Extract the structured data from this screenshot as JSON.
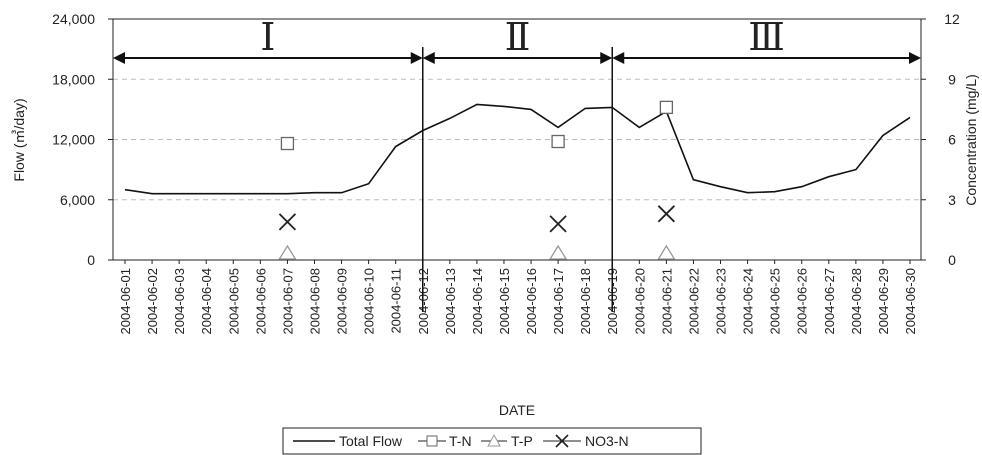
{
  "chart_data": {
    "type": "line",
    "xlabel": "DATE",
    "ylabel_left": "Flow (㎥/day)",
    "ylabel_right": "Concentration (mg/L)",
    "ylim_left": [
      0,
      24000
    ],
    "ylim_right": [
      0,
      12
    ],
    "yticks_left": [
      "0",
      "6,000",
      "12,000",
      "18,000",
      "24,000"
    ],
    "yticks_right": [
      "0",
      "3",
      "6",
      "9",
      "12"
    ],
    "grid": "horizontal-dashed",
    "legend_position": "bottom",
    "x": [
      "2004-06-01",
      "2004-06-02",
      "2004-06-03",
      "2004-06-04",
      "2004-06-05",
      "2004-06-06",
      "2004-06-07",
      "2004-06-08",
      "2004-06-09",
      "2004-06-10",
      "2004-06-11",
      "2004-06-12",
      "2004-06-13",
      "2004-06-14",
      "2004-06-15",
      "2004-06-16",
      "2004-06-17",
      "2004-06-18",
      "2004-06-19",
      "2004-06-20",
      "2004-06-21",
      "2004-06-22",
      "2004-06-23",
      "2004-06-24",
      "2004-06-25",
      "2004-06-26",
      "2004-06-27",
      "2004-06-28",
      "2004-06-29",
      "2004-06-30"
    ],
    "series": [
      {
        "name": "Total Flow",
        "axis": "left",
        "style": "line",
        "color": "#111111",
        "values": [
          7000,
          6600,
          6600,
          6600,
          6600,
          6600,
          6600,
          6700,
          6700,
          7600,
          11300,
          12900,
          14100,
          15500,
          15300,
          15000,
          13200,
          15100,
          15200,
          13200,
          14800,
          8000,
          7300,
          6700,
          6800,
          7300,
          8300,
          9000,
          12400,
          14200
        ]
      },
      {
        "name": "T-N",
        "axis": "right",
        "style": "square",
        "color": "#666666",
        "points": [
          [
            "2004-06-07",
            5.8
          ],
          [
            "2004-06-17",
            5.9
          ],
          [
            "2004-06-21",
            7.6
          ]
        ]
      },
      {
        "name": "T-P",
        "axis": "right",
        "style": "triangle",
        "color": "#999999",
        "points": [
          [
            "2004-06-07",
            0.3
          ],
          [
            "2004-06-17",
            0.3
          ],
          [
            "2004-06-21",
            0.3
          ]
        ]
      },
      {
        "name": "NO3-N",
        "axis": "right",
        "style": "x",
        "color": "#222222",
        "points": [
          [
            "2004-06-07",
            1.9
          ],
          [
            "2004-06-17",
            1.8
          ],
          [
            "2004-06-21",
            2.3
          ]
        ]
      }
    ],
    "periods": [
      {
        "label": "Ⅰ",
        "start": "2004-06-01",
        "end": "2004-06-12"
      },
      {
        "label": "Ⅱ",
        "start": "2004-06-12",
        "end": "2004-06-19"
      },
      {
        "label": "Ⅲ",
        "start": "2004-06-19",
        "end": "2004-06-30"
      }
    ],
    "legend": [
      "Total Flow",
      "T-N",
      "T-P",
      "NO3-N"
    ]
  }
}
